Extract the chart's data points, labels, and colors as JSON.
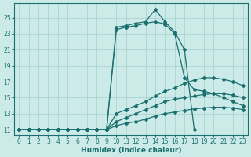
{
  "title": "",
  "xlabel": "Humidex (Indice chaleur)",
  "ylabel": "",
  "bg_color": "#cceae7",
  "line_color": "#1a7070",
  "grid_color": "#aad4d0",
  "xlim": [
    -0.5,
    23.5
  ],
  "ylim": [
    10.3,
    26.8
  ],
  "xticks": [
    0,
    1,
    2,
    3,
    4,
    5,
    6,
    7,
    8,
    9,
    10,
    11,
    12,
    13,
    14,
    15,
    16,
    17,
    18,
    19,
    20,
    21,
    22,
    23
  ],
  "yticks": [
    11,
    13,
    15,
    17,
    19,
    21,
    23,
    25
  ],
  "series": [
    {
      "x": [
        0,
        1,
        2,
        3,
        4,
        5,
        6,
        7,
        8,
        9,
        10,
        11,
        12,
        13,
        14,
        15,
        16,
        17,
        18
      ],
      "y": [
        11,
        11,
        11,
        11,
        11,
        11,
        11,
        11,
        11,
        11,
        23.8,
        24.0,
        24.3,
        24.5,
        26.0,
        24.5,
        23.2,
        21.0,
        11.0
      ]
    },
    {
      "x": [
        0,
        1,
        2,
        3,
        4,
        5,
        6,
        7,
        8,
        9,
        10,
        11,
        12,
        13,
        14,
        15,
        16,
        17,
        18,
        19,
        20,
        21,
        22,
        23
      ],
      "y": [
        11,
        11,
        11,
        11,
        11,
        11,
        11,
        11,
        11,
        11,
        23.5,
        23.8,
        24.0,
        24.3,
        24.5,
        24.2,
        23.0,
        17.5,
        16.0,
        15.8,
        15.5,
        15.0,
        14.5,
        14.0
      ]
    },
    {
      "x": [
        0,
        1,
        2,
        3,
        4,
        5,
        6,
        7,
        8,
        9,
        10,
        11,
        12,
        13,
        14,
        15,
        16,
        17,
        18,
        19,
        20,
        21,
        22,
        23
      ],
      "y": [
        11,
        11,
        11,
        11,
        11,
        11,
        11,
        11,
        11,
        11,
        13.0,
        13.5,
        14.0,
        14.5,
        15.2,
        15.8,
        16.2,
        16.8,
        17.2,
        17.5,
        17.5,
        17.3,
        17.0,
        16.5
      ]
    },
    {
      "x": [
        0,
        1,
        2,
        3,
        4,
        5,
        6,
        7,
        8,
        9,
        10,
        11,
        12,
        13,
        14,
        15,
        16,
        17,
        18,
        19,
        20,
        21,
        22,
        23
      ],
      "y": [
        11,
        11,
        11,
        11,
        11,
        11,
        11,
        11,
        11,
        11,
        12.0,
        12.5,
        13.0,
        13.5,
        14.0,
        14.5,
        14.8,
        15.0,
        15.2,
        15.4,
        15.5,
        15.5,
        15.3,
        15.0
      ]
    },
    {
      "x": [
        0,
        1,
        2,
        3,
        4,
        5,
        6,
        7,
        8,
        9,
        10,
        11,
        12,
        13,
        14,
        15,
        16,
        17,
        18,
        19,
        20,
        21,
        22,
        23
      ],
      "y": [
        11,
        11,
        11,
        11,
        11,
        11,
        11,
        11,
        11,
        11,
        11.5,
        11.8,
        12.0,
        12.3,
        12.7,
        13.0,
        13.2,
        13.4,
        13.6,
        13.7,
        13.8,
        13.8,
        13.7,
        13.5
      ]
    }
  ]
}
